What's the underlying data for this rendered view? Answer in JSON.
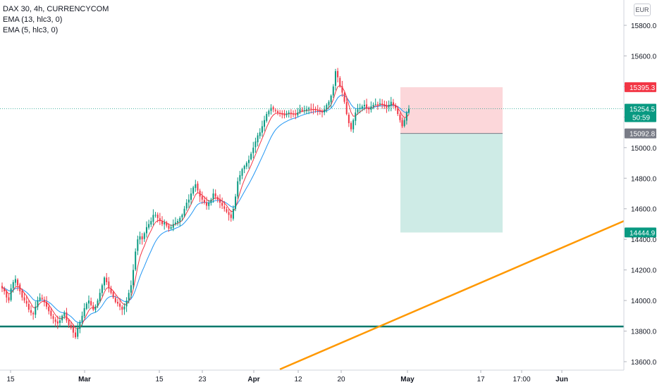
{
  "legend": {
    "symbol": "DAX 30, 4h, CURRENCYCOM",
    "ema1": "EMA (13, hlc3, 0)",
    "ema2": "EMA (5, hlc3, 0)"
  },
  "currency_button": "EUR",
  "chart_data": {
    "type": "candlestick",
    "ylim": [
      13540,
      15900
    ],
    "y_ticks": [
      13600,
      13800,
      14000,
      14200,
      14400,
      14600,
      14800,
      15000,
      15200,
      15400,
      15600,
      15800
    ],
    "y_tick_labels": [
      "13600.0",
      "13800.0",
      "14000.0",
      "14200.0",
      "14400.0",
      "14600.0",
      "14800.0",
      "15000.0",
      "15200.0",
      "15400.0",
      "15600.0",
      "15800.0"
    ],
    "x_tick_labels": [
      "15",
      "Mar",
      "15",
      "23",
      "Apr",
      "12",
      "20",
      "May",
      "17",
      "17:00",
      "Jun"
    ],
    "price_tags": [
      {
        "label": "15395.3",
        "value": 15395.3,
        "color": "#f23645"
      },
      {
        "label": "15254.5",
        "sublabel": "50:59",
        "value": 15254.5,
        "color": "#089981"
      },
      {
        "label": "15092.8",
        "value": 15092.8,
        "color": "#787b86"
      },
      {
        "label": "14444.9",
        "value": 14444.9,
        "color": "#089981"
      }
    ],
    "position_tool": {
      "stop_loss": 15395.3,
      "entry": 15092.8,
      "take_profit": 14444.9,
      "stop_color": "#f23645",
      "target_color": "#089981"
    },
    "horizontal_line": {
      "value": 13830,
      "color": "#00796b"
    },
    "trend_line": {
      "color": "#ff9800",
      "from_value": 13550,
      "to_value": 14520
    },
    "current_price": 15254.5,
    "closes": [
      14080,
      14060,
      14020,
      14000,
      14080,
      14120,
      14140,
      14100,
      14060,
      14020,
      14000,
      13980,
      13940,
      13920,
      13910,
      13960,
      14000,
      14020,
      14010,
      13990,
      13960,
      13930,
      13900,
      13880,
      13860,
      13850,
      13870,
      13900,
      13920,
      13870,
      13840,
      13820,
      13790,
      13760,
      13820,
      13860,
      13900,
      13950,
      13980,
      14000,
      13970,
      13940,
      13960,
      14000,
      14050,
      14100,
      14150,
      14120,
      14080,
      14050,
      14020,
      13990,
      13980,
      13960,
      13940,
      13960,
      14000,
      14050,
      14100,
      14200,
      14320,
      14400,
      14420,
      14400,
      14440,
      14480,
      14500,
      14520,
      14560,
      14560,
      14540,
      14520,
      14500,
      14510,
      14490,
      14470,
      14480,
      14500,
      14510,
      14520,
      14540,
      14560,
      14600,
      14640,
      14660,
      14700,
      14740,
      14760,
      14720,
      14680,
      14660,
      14640,
      14620,
      14640,
      14660,
      14700,
      14680,
      14660,
      14640,
      14620,
      14600,
      14580,
      14560,
      14540,
      14600,
      14680,
      14780,
      14820,
      14860,
      14880,
      14900,
      14920,
      14960,
      15000,
      15040,
      15080,
      15100,
      15140,
      15180,
      15220,
      15240,
      15260,
      15250,
      15240,
      15230,
      15220,
      15215,
      15210,
      15220,
      15230,
      15225,
      15220,
      15215,
      15230,
      15250,
      15240,
      15245,
      15250,
      15260,
      15255,
      15250,
      15245,
      15240,
      15235,
      15230,
      15250,
      15280,
      15300,
      15340,
      15400,
      15500,
      15460,
      15400,
      15360,
      15300,
      15220,
      15160,
      15120,
      15180,
      15230,
      15250,
      15260,
      15270,
      15280,
      15260,
      15250,
      15270,
      15280,
      15285,
      15280,
      15290,
      15280,
      15270,
      15260,
      15280,
      15300,
      15280,
      15260,
      15220,
      15180,
      15140,
      15180,
      15230,
      15254.5
    ]
  }
}
